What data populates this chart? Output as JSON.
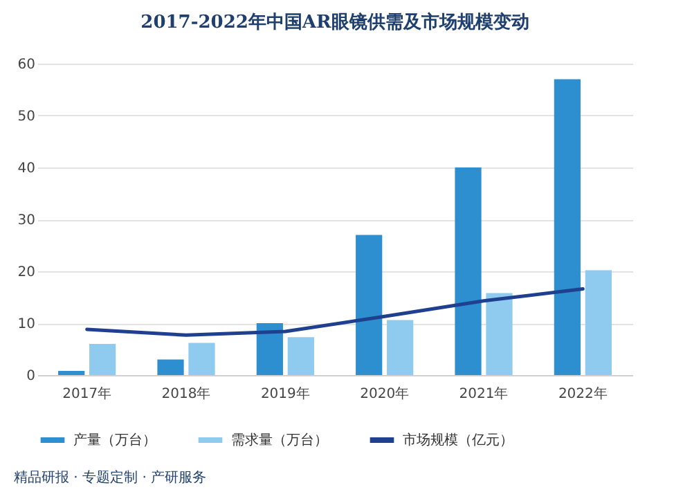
{
  "chart_data": {
    "type": "bar",
    "title": "2017-2022年中国AR眼镜供需及市场规模变动",
    "categories": [
      "2017年",
      "2018年",
      "2019年",
      "2020年",
      "2021年",
      "2022年"
    ],
    "series": [
      {
        "name": "产量（万台）",
        "color": "#2e8fd0",
        "values": [
          0.8,
          3,
          10,
          27,
          40,
          57
        ]
      },
      {
        "name": "需求量（万台）",
        "color": "#8ecbef",
        "values": [
          6,
          6.2,
          7.3,
          10.6,
          15.8,
          20.2
        ]
      },
      {
        "name": "市场规模（亿元）",
        "type": "line",
        "color": "#1f3f8f",
        "values": [
          8.8,
          7.7,
          8.4,
          11.3,
          14.3,
          16.6
        ]
      }
    ],
    "ylim": [
      0,
      60
    ],
    "yticks": [
      0,
      10,
      20,
      30,
      40,
      50,
      60
    ],
    "grid": "y",
    "legend": "bottom",
    "annotations": [
      "精品研报 · 专题定制 · 产研服务"
    ]
  }
}
